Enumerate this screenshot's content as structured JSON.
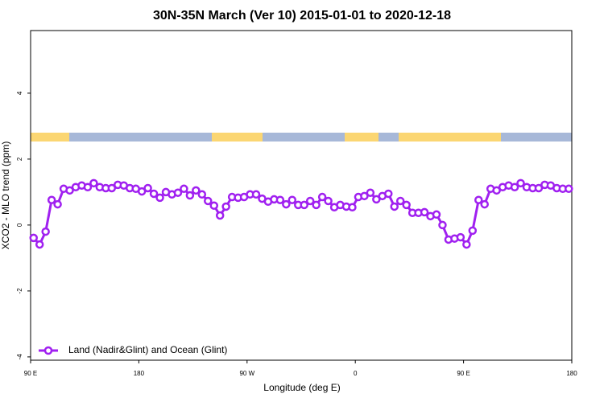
{
  "chart_data": {
    "type": "line",
    "title": "30N-35N March (Ver 10)   2015-01-01 to 2020-12-18",
    "x_label": "Longitude (deg E)",
    "y_label": "XCO2 - MLO trend (ppm)",
    "xlim": [
      90,
      540
    ],
    "xticks": [
      {
        "value": 90,
        "label": "90 E"
      },
      {
        "value": 180,
        "label": "180"
      },
      {
        "value": 270,
        "label": "90 W"
      },
      {
        "value": 360,
        "label": "0"
      },
      {
        "value": 450,
        "label": "90 E"
      },
      {
        "value": 540,
        "label": "180"
      }
    ],
    "ylim": [
      -4.1,
      5.9
    ],
    "yticks": [
      -4,
      -2,
      0,
      2,
      4
    ],
    "legend_position": "bottom-left",
    "x": [
      92.5,
      97.5,
      102.5,
      107.5,
      112.5,
      117.5,
      122.5,
      127.5,
      132.5,
      137.5,
      142.5,
      147.5,
      152.5,
      157.5,
      162.5,
      167.5,
      172.5,
      177.5,
      182.5,
      187.5,
      192.5,
      197.5,
      202.5,
      207.5,
      212.5,
      217.5,
      222.5,
      227.5,
      232.5,
      237.5,
      242.5,
      247.5,
      252.5,
      257.5,
      262.5,
      267.5,
      272.5,
      277.5,
      282.5,
      287.5,
      292.5,
      297.5,
      302.5,
      307.5,
      312.5,
      317.5,
      322.5,
      327.5,
      332.5,
      337.5,
      342.5,
      347.5,
      352.5,
      357.5,
      362.5,
      367.5,
      372.5,
      377.5,
      382.5,
      387.5,
      392.5,
      397.5,
      402.5,
      407.5,
      412.5,
      417.5,
      422.5,
      427.5,
      432.5,
      437.5,
      442.5,
      447.5,
      452.5,
      457.5,
      462.5,
      467.5,
      472.5,
      477.5,
      482.5,
      487.5,
      492.5,
      497.5,
      502.5,
      507.5,
      512.5,
      517.5,
      522.5,
      527.5,
      532.5,
      537.5
    ],
    "series": [
      {
        "name": "Land (Nadir&Glint) and Ocean (Glint)",
        "color": "#a020f0",
        "values": [
          -0.39,
          -0.59,
          -0.2,
          0.76,
          0.63,
          1.1,
          1.05,
          1.15,
          1.2,
          1.15,
          1.27,
          1.15,
          1.12,
          1.12,
          1.22,
          1.2,
          1.12,
          1.1,
          1.02,
          1.12,
          0.95,
          0.83,
          1.0,
          0.93,
          0.98,
          1.1,
          0.9,
          1.05,
          0.93,
          0.73,
          0.59,
          0.29,
          0.56,
          0.85,
          0.83,
          0.85,
          0.93,
          0.93,
          0.8,
          0.71,
          0.78,
          0.76,
          0.63,
          0.76,
          0.61,
          0.61,
          0.73,
          0.61,
          0.85,
          0.73,
          0.54,
          0.61,
          0.56,
          0.54,
          0.85,
          0.88,
          0.98,
          0.78,
          0.88,
          0.95,
          0.56,
          0.73,
          0.61,
          0.37,
          0.37,
          0.39,
          0.27,
          0.32,
          0,
          -0.44,
          -0.41,
          -0.37,
          -0.59,
          -0.17,
          0.76,
          0.63,
          1.1,
          1.05,
          1.15,
          1.2,
          1.15,
          1.27,
          1.15,
          1.12,
          1.12,
          1.22,
          1.2,
          1.12,
          1.1,
          1.1
        ]
      }
    ]
  }
}
